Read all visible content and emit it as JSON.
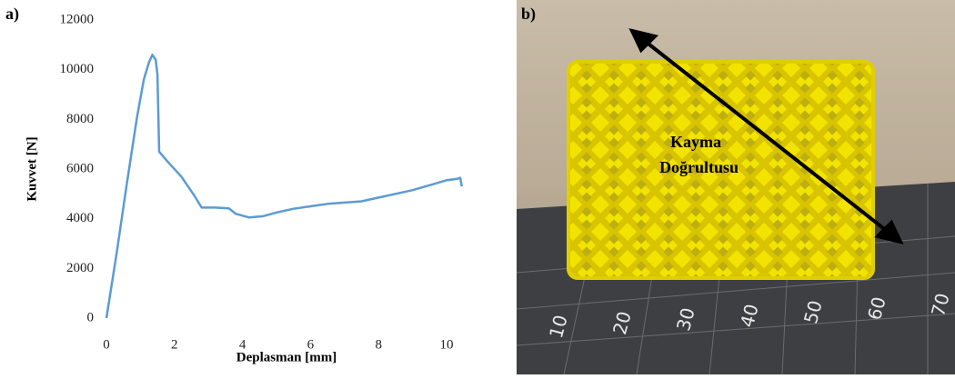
{
  "panel_labels": [
    "a)",
    "b)"
  ],
  "photo": {
    "annotation": [
      "Kayma",
      "Doğrultusu"
    ],
    "ruler_labels": [
      "10",
      "20",
      "30",
      "40",
      "50",
      "60",
      "70"
    ]
  },
  "chart_data": {
    "type": "line",
    "x_label": "Deplasman  [mm]",
    "y_label": "Kuvvet  [N]",
    "x": [
      0,
      0.3,
      0.6,
      0.9,
      1.1,
      1.25,
      1.35,
      1.45,
      1.5,
      1.55,
      1.8,
      2.2,
      2.6,
      2.8,
      3.2,
      3.6,
      3.8,
      4.2,
      4.6,
      5,
      5.5,
      6,
      6.5,
      7,
      7.5,
      8,
      8.5,
      9,
      9.5,
      10,
      10.3,
      10.4,
      10.45
    ],
    "series": [
      {
        "color": "#5b9bd5",
        "values": [
          0,
          2600,
          5400,
          8100,
          9600,
          10300,
          10600,
          10400,
          9800,
          6700,
          6300,
          5700,
          4900,
          4450,
          4450,
          4420,
          4200,
          4050,
          4100,
          4250,
          4400,
          4500,
          4600,
          4650,
          4700,
          4850,
          5000,
          5150,
          5350,
          5550,
          5600,
          5650,
          5300
        ]
      }
    ],
    "xlim": [
      0,
      11
    ],
    "xticks": [
      0,
      2,
      4,
      6,
      8,
      10
    ],
    "ylim": [
      0,
      12000
    ],
    "yticks": [
      0,
      2000,
      4000,
      6000,
      8000,
      10000,
      12000
    ]
  }
}
